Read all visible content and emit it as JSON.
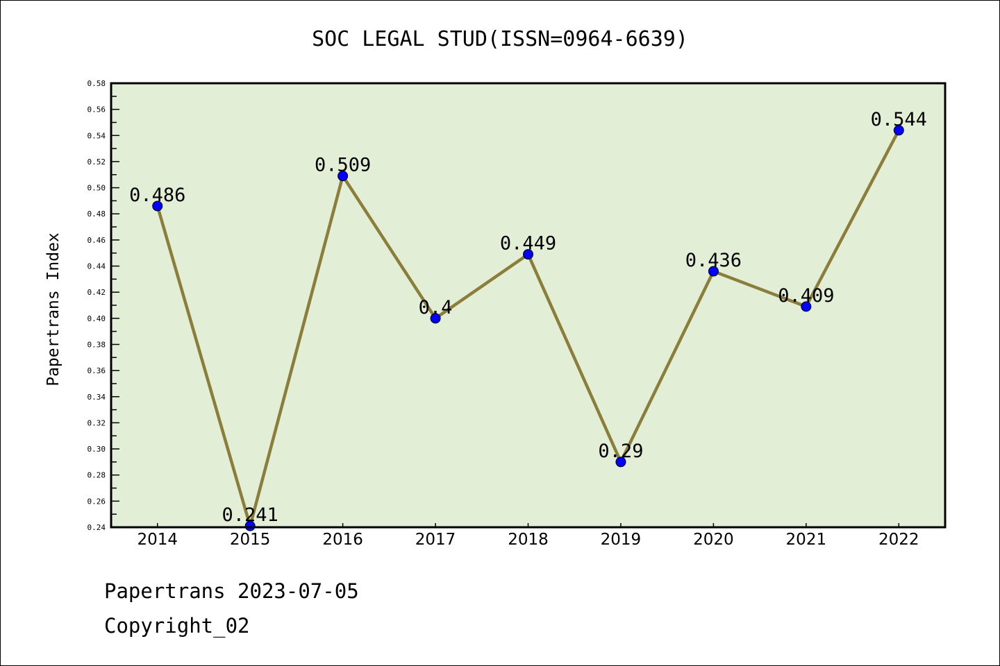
{
  "chart_data": {
    "type": "line",
    "title": "SOC LEGAL STUD(ISSN=0964-6639)",
    "xlabel": "",
    "ylabel": "Papertrans Index",
    "x": [
      2014,
      2015,
      2016,
      2017,
      2018,
      2019,
      2020,
      2021,
      2022
    ],
    "values": [
      0.486,
      0.241,
      0.509,
      0.4,
      0.449,
      0.29,
      0.436,
      0.409,
      0.544
    ],
    "data_labels": [
      "0.486",
      "0.241",
      "0.509",
      "0.4",
      "0.449",
      "0.29",
      "0.436",
      "0.409",
      "0.544"
    ],
    "xlim": [
      2013.5,
      2022.5
    ],
    "ylim": [
      0.24,
      0.58
    ],
    "yticks": [
      "0.24",
      "0.26",
      "0.28",
      "0.30",
      "0.32",
      "0.34",
      "0.36",
      "0.38",
      "0.40",
      "0.42",
      "0.44",
      "0.46",
      "0.48",
      "0.50",
      "0.52",
      "0.54",
      "0.56",
      "0.58"
    ],
    "grid": false,
    "colors": {
      "line": "#8B7D3A",
      "marker": "#0000FF",
      "plot_bg": "#E2EFD6"
    }
  },
  "footer": {
    "line1": "Papertrans 2023-07-05",
    "line2": "Copyright_02"
  }
}
